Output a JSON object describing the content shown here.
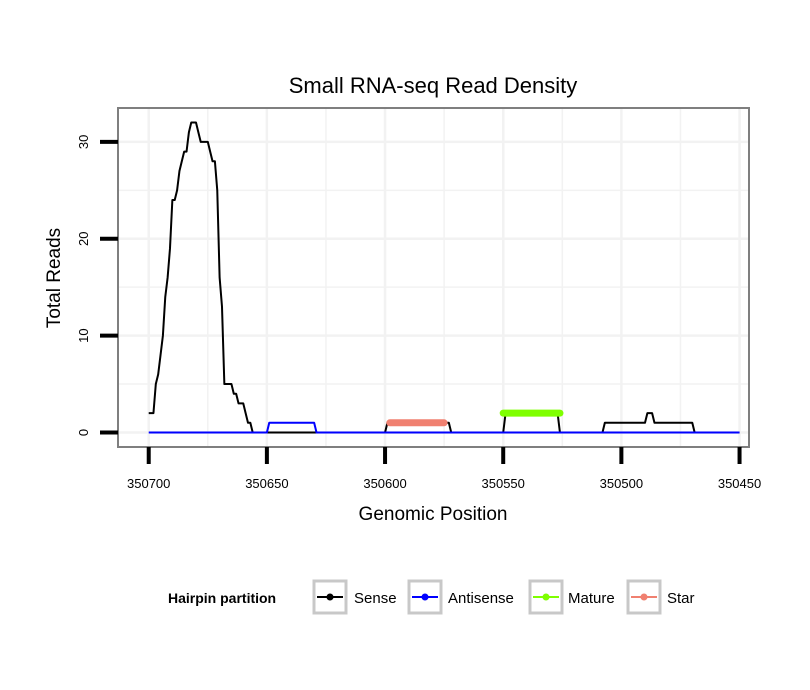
{
  "chart_data": {
    "type": "line",
    "title": "Small RNA-seq Read Density",
    "xlabel": "Genomic Position",
    "ylabel": "Total Reads",
    "x_reversed": true,
    "xlim": [
      350713,
      350446
    ],
    "ylim": [
      -1.5,
      33.5
    ],
    "x_ticks": [
      350700,
      350650,
      350600,
      350550,
      350500,
      350450
    ],
    "x_tick_labels": [
      "350700",
      "350650",
      "350600",
      "350550",
      "350500",
      "350450"
    ],
    "y_ticks": [
      0,
      10,
      20,
      30
    ],
    "y_tick_labels": [
      "0",
      "10",
      "20",
      "30"
    ],
    "grid": true,
    "legend": {
      "title": "Hairpin partition",
      "position": "bottom",
      "entries": [
        {
          "name": "Sense",
          "color": "#000000"
        },
        {
          "name": "Antisense",
          "color": "#0000ff"
        },
        {
          "name": "Mature",
          "color": "#7fff00"
        },
        {
          "name": "Star",
          "color": "#f08070"
        }
      ]
    },
    "series": [
      {
        "name": "Sense",
        "color": "#000000",
        "x": [
          350700,
          350699,
          350698,
          350697,
          350696,
          350695,
          350694,
          350693,
          350692,
          350691,
          350690,
          350689,
          350688,
          350687,
          350686,
          350685,
          350684,
          350683,
          350682,
          350681,
          350680,
          350679,
          350678,
          350677,
          350676,
          350675,
          350674,
          350673,
          350672,
          350671,
          350670,
          350669,
          350668,
          350667,
          350666,
          350665,
          350664,
          350663,
          350662,
          350661,
          350660,
          350659,
          350658,
          350657,
          350656,
          350655,
          350654,
          350653,
          350652,
          350651,
          350650,
          350600,
          350599,
          350598,
          350573,
          350572,
          350571,
          350550,
          350549,
          350548,
          350527,
          350526,
          350525,
          350508,
          350507,
          350506,
          350491,
          350490,
          350489,
          350488,
          350487,
          350486,
          350485,
          350470,
          350469,
          350450
        ],
        "y": [
          2,
          2,
          2,
          5,
          6,
          8,
          10,
          14,
          16,
          19,
          24,
          24,
          25,
          27,
          28,
          29,
          29,
          31,
          32,
          32,
          32,
          31,
          30,
          30,
          30,
          30,
          29,
          28,
          28,
          25,
          16,
          13,
          5,
          5,
          5,
          5,
          4,
          4,
          3,
          3,
          3,
          2,
          1,
          1,
          0,
          0,
          0,
          0,
          0,
          0,
          0,
          0,
          1,
          1,
          1,
          0,
          0,
          0,
          2,
          2,
          2,
          0,
          0,
          0,
          1,
          1,
          1,
          1,
          2,
          2,
          2,
          1,
          1,
          1,
          0,
          0
        ]
      },
      {
        "name": "Antisense",
        "color": "#0000ff",
        "x": [
          350700,
          350651,
          350650,
          350649,
          350630,
          350629,
          350628,
          350450
        ],
        "y": [
          0,
          0,
          0,
          1,
          1,
          0,
          0,
          0
        ]
      },
      {
        "name": "Mature",
        "color": "#7fff00",
        "x": [
          350550,
          350526
        ],
        "y": [
          2,
          2
        ]
      },
      {
        "name": "Star",
        "color": "#f08070",
        "x": [
          350598,
          350575
        ],
        "y": [
          1,
          1
        ]
      }
    ]
  }
}
